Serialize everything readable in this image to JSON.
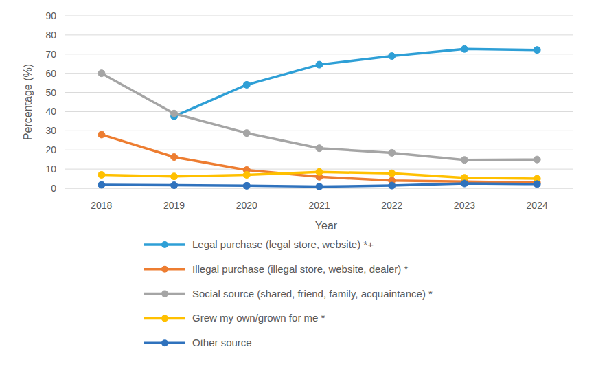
{
  "chart_data": {
    "type": "line",
    "x_label": "Year",
    "y_label": "Percentage (%)",
    "categories": [
      "2018",
      "2019",
      "2020",
      "2021",
      "2022",
      "2023",
      "2024"
    ],
    "series": [
      {
        "name": "Legal purchase (legal store, website) *+",
        "color": "#2e9fd6",
        "values": [
          null,
          37.5,
          54,
          64.5,
          69,
          72.7,
          72.2
        ]
      },
      {
        "name": "Illegal purchase (illegal store, website, dealer) *",
        "color": "#ed7d31",
        "values": [
          28,
          16.3,
          9.5,
          6,
          4,
          3.5,
          3
        ]
      },
      {
        "name": "Social source (shared, friend, family, acquaintance) *",
        "color": "#a5a5a5",
        "values": [
          60,
          39,
          28.8,
          20.9,
          18.5,
          14.8,
          15
        ]
      },
      {
        "name": "Grew my own/grown for me *",
        "color": "#ffc000",
        "values": [
          7,
          6.2,
          7,
          8.5,
          7.8,
          5.5,
          5
        ]
      },
      {
        "name": "Other source",
        "color": "#2f72bd",
        "values": [
          1.8,
          1.6,
          1.3,
          0.9,
          1.4,
          2.5,
          2.2
        ]
      }
    ],
    "ylim": [
      0,
      90
    ],
    "yticks": [
      0,
      10,
      20,
      30,
      40,
      50,
      60,
      70,
      80,
      90
    ],
    "grid": true,
    "legend": "bottom",
    "marker": "circle",
    "line_style": "solid"
  }
}
